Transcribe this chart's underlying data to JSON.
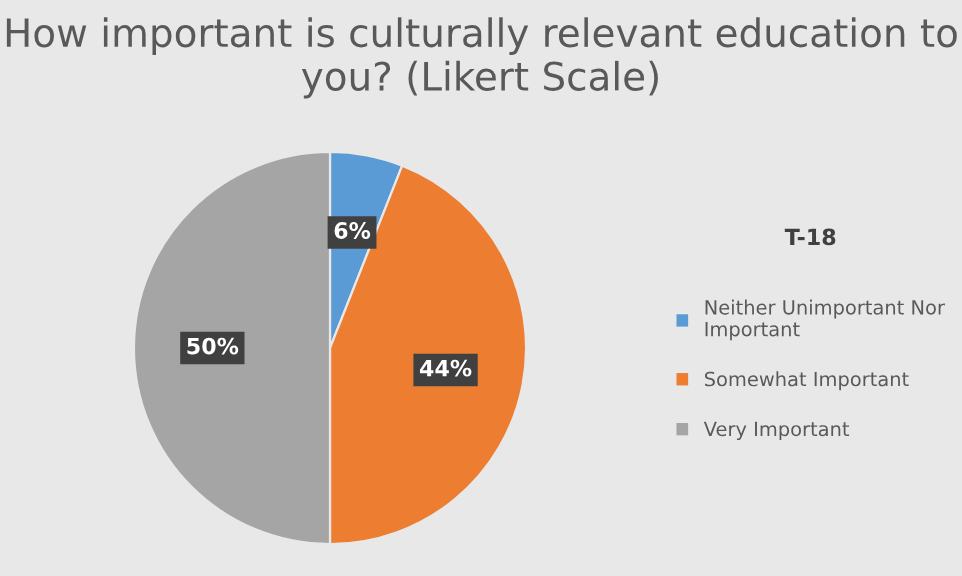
{
  "chart_data": {
    "type": "pie",
    "title": "How important is culturally relevant education to you? (Likert Scale)",
    "legend_title": "T-18",
    "categories": [
      "Neither Unimportant Nor Important",
      "Somewhat Important",
      "Very Important"
    ],
    "values": [
      6,
      44,
      50
    ],
    "colors": [
      "#5b9bd5",
      "#ed7d31",
      "#a5a5a5"
    ],
    "value_labels": [
      "6%",
      "44%",
      "50%"
    ],
    "legend": "right"
  }
}
